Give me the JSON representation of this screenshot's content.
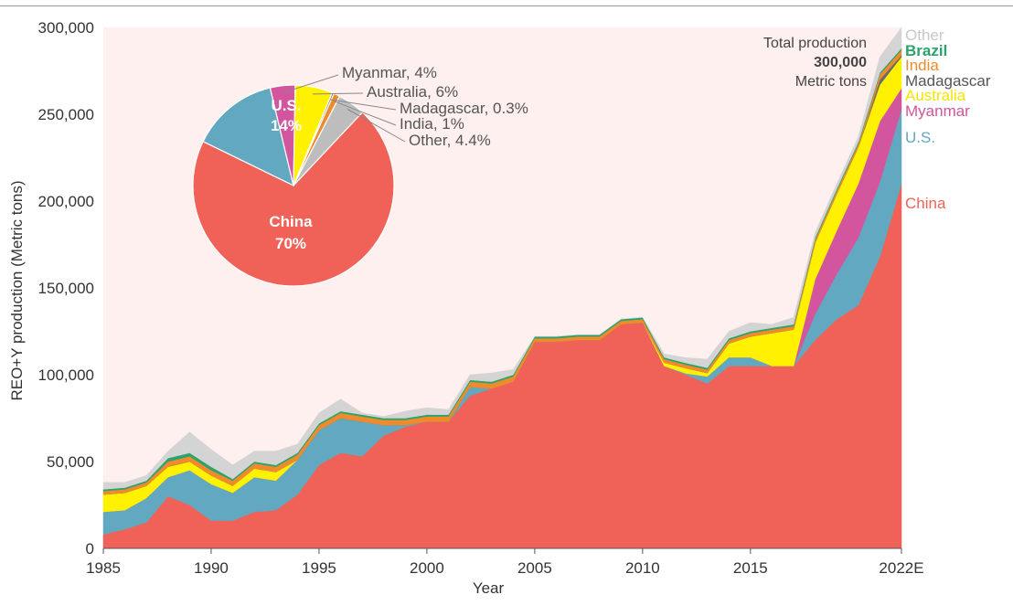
{
  "chart_data": {
    "type": "area",
    "ylabel": "REO+Y production (Metric tons)",
    "xlabel": "Year",
    "ylim": [
      0,
      300000
    ],
    "yticks": [
      "0",
      "50,000",
      "100,000",
      "150,000",
      "200,000",
      "250,000",
      "300,000"
    ],
    "ytick_values": [
      0,
      50000,
      100000,
      150000,
      200000,
      250000,
      300000
    ],
    "xticks": [
      "1985",
      "1990",
      "1995",
      "2000",
      "2005",
      "2010",
      "2015",
      "2022E"
    ],
    "xtick_values": [
      1985,
      1990,
      1995,
      2000,
      2005,
      2010,
      2015,
      2022
    ],
    "x": [
      1985,
      1986,
      1987,
      1988,
      1989,
      1990,
      1991,
      1992,
      1993,
      1994,
      1995,
      1996,
      1997,
      1998,
      1999,
      2000,
      2001,
      2002,
      2003,
      2004,
      2005,
      2006,
      2007,
      2008,
      2009,
      2010,
      2011,
      2012,
      2013,
      2014,
      2015,
      2016,
      2017,
      2018,
      2019,
      2020,
      2021,
      2022
    ],
    "series": [
      {
        "name": "China",
        "color": "#f06157",
        "values": [
          8000,
          11000,
          15000,
          30000,
          25000,
          16000,
          16000,
          21000,
          22000,
          31000,
          48000,
          55000,
          53000,
          65000,
          70000,
          73000,
          73000,
          88000,
          92000,
          96000,
          119000,
          119000,
          120000,
          120000,
          129000,
          130000,
          105000,
          100000,
          95000,
          105000,
          105000,
          105000,
          105000,
          120000,
          132000,
          140000,
          168000,
          210000
        ]
      },
      {
        "name": "U.S.",
        "color": "#62a8c0",
        "values": [
          13000,
          11000,
          14000,
          11000,
          20000,
          21000,
          16000,
          20000,
          17000,
          20000,
          20000,
          20000,
          20000,
          6000,
          1000,
          0,
          0,
          5000,
          0,
          0,
          0,
          0,
          0,
          0,
          0,
          0,
          0,
          800,
          4000,
          5000,
          5000,
          0,
          0,
          15000,
          26000,
          39000,
          43000,
          43000
        ]
      },
      {
        "name": "Myanmar",
        "color": "#d2559e",
        "values": [
          0,
          0,
          0,
          0,
          0,
          0,
          0,
          0,
          0,
          0,
          0,
          0,
          0,
          0,
          0,
          0,
          0,
          0,
          0,
          0,
          0,
          0,
          0,
          0,
          0,
          0,
          0,
          0,
          0,
          0,
          0,
          0,
          0,
          20000,
          25000,
          31000,
          35000,
          12000
        ]
      },
      {
        "name": "Australia",
        "color": "#fff100",
        "values": [
          10000,
          10000,
          7000,
          6000,
          5000,
          5000,
          4000,
          5000,
          5000,
          0,
          0,
          0,
          0,
          0,
          0,
          0,
          0,
          0,
          0,
          0,
          0,
          0,
          0,
          0,
          0,
          0,
          2000,
          3000,
          2000,
          8000,
          12000,
          19000,
          21000,
          21000,
          21000,
          21000,
          21000,
          18000
        ]
      },
      {
        "name": "Madagascar",
        "color": "#6b6b6b",
        "values": [
          0,
          0,
          0,
          0,
          0,
          0,
          0,
          0,
          0,
          0,
          0,
          0,
          0,
          0,
          0,
          0,
          0,
          0,
          0,
          0,
          0,
          0,
          0,
          0,
          0,
          0,
          0,
          0,
          0,
          0,
          0,
          0,
          0,
          0,
          0,
          0,
          3000,
          1000
        ]
      },
      {
        "name": "India",
        "color": "#ef8b2c",
        "values": [
          2000,
          2000,
          2000,
          3000,
          3000,
          3000,
          3000,
          3000,
          3000,
          3000,
          3000,
          3000,
          3000,
          3000,
          3000,
          3000,
          3000,
          3000,
          3000,
          3000,
          2000,
          2000,
          2000,
          2000,
          2000,
          2000,
          2000,
          2000,
          2000,
          2000,
          2000,
          2000,
          2000,
          2000,
          2000,
          2000,
          3000,
          3000
        ]
      },
      {
        "name": "Brazil",
        "color": "#2ba36a",
        "values": [
          1000,
          1000,
          1000,
          2000,
          2000,
          2000,
          1000,
          1000,
          1000,
          1000,
          1000,
          1000,
          1000,
          1000,
          1000,
          1000,
          1000,
          1000,
          1000,
          1000,
          1000,
          1000,
          1000,
          1000,
          1000,
          1000,
          1000,
          1000,
          1000,
          1000,
          1000,
          1000,
          1000,
          1000,
          1000,
          1000,
          1000,
          1000
        ]
      },
      {
        "name": "Other",
        "color": "#d4d4d4",
        "values": [
          4000,
          3000,
          3000,
          4000,
          12000,
          10000,
          8000,
          6000,
          8000,
          5000,
          6000,
          7000,
          1000,
          1000,
          4000,
          4000,
          3000,
          3000,
          5000,
          3000,
          0,
          0,
          0,
          0,
          0,
          0,
          2000,
          3000,
          5000,
          4000,
          5000,
          2000,
          4000,
          3000,
          3000,
          3000,
          9000,
          12000
        ]
      }
    ],
    "series_labels": [
      "Other",
      "Brazil",
      "India",
      "Madagascar",
      "Australia",
      "Myanmar",
      "U.S.",
      "China"
    ],
    "total_annotation": {
      "line1": "Total production",
      "value": "300,000",
      "line3": "Metric tons"
    },
    "pie": {
      "type": "pie",
      "slices": [
        {
          "name": "China",
          "value": 70,
          "color": "#f06157",
          "inner_name": "China",
          "inner_pct": "70%"
        },
        {
          "name": "U.S.",
          "value": 14,
          "color": "#62a8c0",
          "inner_name": "U.S.",
          "inner_pct": "14%"
        },
        {
          "name": "Myanmar",
          "value": 4,
          "color": "#d2559e",
          "label": "Myanmar, 4%"
        },
        {
          "name": "Australia",
          "value": 6,
          "color": "#fff100",
          "label": "Australia, 6%"
        },
        {
          "name": "Madagascar",
          "value": 0.3,
          "color": "#6b6b6b",
          "label": "Madagascar, 0.3%"
        },
        {
          "name": "India",
          "value": 1,
          "color": "#ef8b2c",
          "label": "India, 1%"
        },
        {
          "name": "Other",
          "value": 4.4,
          "color": "#bdbdbd",
          "label": "Other, 4.4%"
        }
      ]
    },
    "plot_background": "#fdf0ee"
  }
}
